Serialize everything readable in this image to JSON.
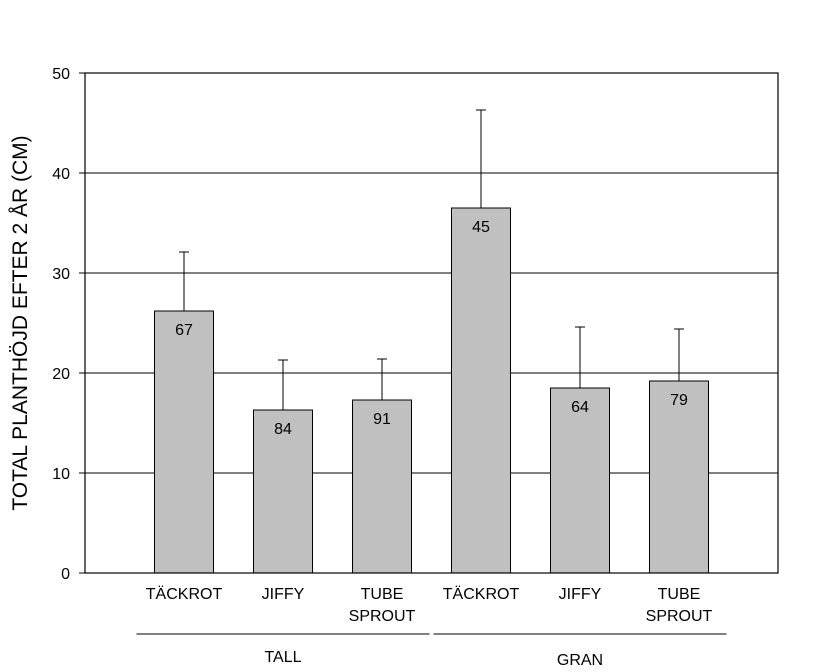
{
  "chart_data": {
    "type": "bar",
    "ylabel": "TOTAL PLANTHÖJD EFTER 2 ÅR (CM)",
    "ylim": [
      0,
      50
    ],
    "yticks": [
      0,
      10,
      20,
      30,
      40,
      50
    ],
    "grid": "horizontal",
    "bar_color": "#c0c0c0",
    "groups": [
      {
        "label": "TALL",
        "categories": [
          [
            "TÄCKROT"
          ],
          [
            "JIFFY"
          ],
          [
            "TUBE",
            "SPROUT"
          ]
        ]
      },
      {
        "label": "GRAN",
        "categories": [
          [
            "TÄCKROT"
          ],
          [
            "JIFFY"
          ],
          [
            "TUBE",
            "SPROUT"
          ]
        ]
      }
    ],
    "values": [
      26.2,
      16.3,
      17.3,
      36.5,
      18.5,
      19.2
    ],
    "error_upper": [
      32.1,
      21.3,
      21.4,
      46.3,
      24.6,
      24.4
    ],
    "bar_labels": [
      "67",
      "84",
      "91",
      "45",
      "64",
      "79"
    ]
  }
}
